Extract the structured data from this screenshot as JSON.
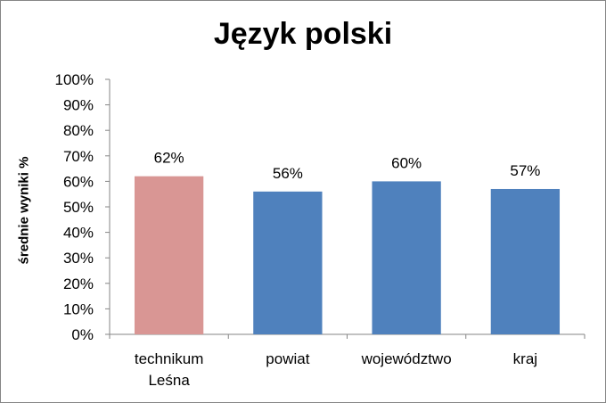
{
  "chart_data": {
    "type": "bar",
    "title": "Język polski",
    "xlabel": "",
    "ylabel": "średnie wyniki %",
    "ylim": [
      0,
      100
    ],
    "ytick_labels": [
      "0%",
      "10%",
      "20%",
      "30%",
      "40%",
      "50%",
      "60%",
      "70%",
      "80%",
      "90%",
      "100%"
    ],
    "categories": [
      [
        "technikum",
        "Leśna"
      ],
      [
        "powiat"
      ],
      [
        "województwo"
      ],
      [
        "kraj"
      ]
    ],
    "values": [
      62,
      56,
      60,
      57
    ],
    "data_labels": [
      "62%",
      "56%",
      "60%",
      "57%"
    ],
    "bar_colors": [
      "#D99694",
      "#4F81BD",
      "#4F81BD",
      "#4F81BD"
    ],
    "grid": false,
    "legend": "none"
  }
}
